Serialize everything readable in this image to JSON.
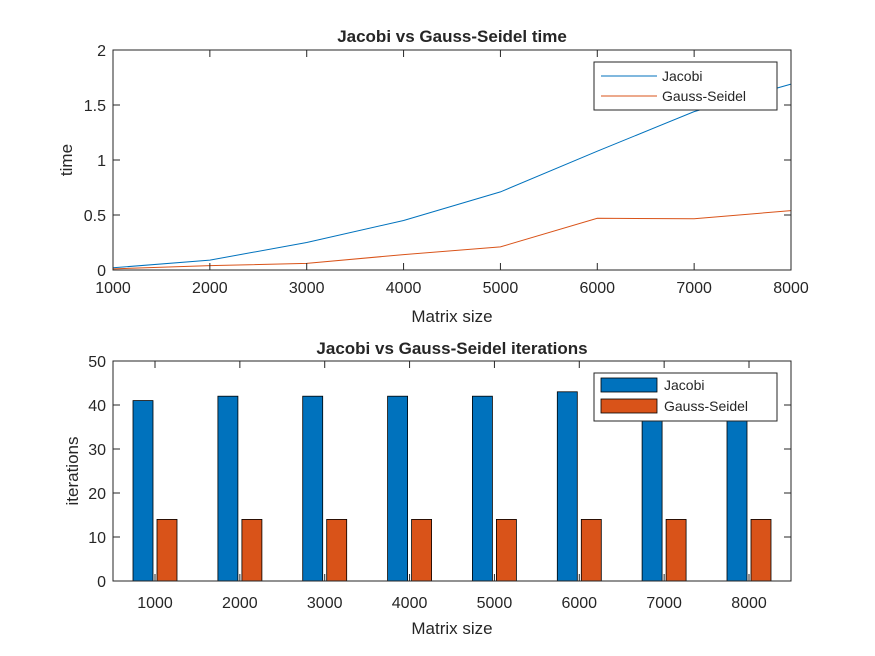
{
  "chart_data": [
    {
      "type": "line",
      "title": "Jacobi vs Gauss-Seidel time",
      "xlabel": "Matrix size",
      "ylabel": "time",
      "xlim": [
        1000,
        8000
      ],
      "ylim": [
        0,
        2
      ],
      "x": [
        1000,
        2000,
        3000,
        4000,
        5000,
        6000,
        7000,
        8000
      ],
      "xticks": [
        "1000",
        "2000",
        "3000",
        "4000",
        "5000",
        "6000",
        "7000",
        "8000"
      ],
      "yticks": [
        "0",
        "0.5",
        "1",
        "1.5",
        "2"
      ],
      "series": [
        {
          "name": "Jacobi",
          "color": "#0072BD",
          "values": [
            0.02,
            0.09,
            0.25,
            0.45,
            0.71,
            1.08,
            1.44,
            1.69
          ]
        },
        {
          "name": "Gauss-Seidel",
          "color": "#D95319",
          "values": [
            0.01,
            0.04,
            0.06,
            0.14,
            0.21,
            0.47,
            0.465,
            0.54
          ]
        }
      ],
      "legend": "top-right",
      "grid": false
    },
    {
      "type": "bar",
      "title": "Jacobi vs Gauss-Seidel iterations",
      "xlabel": "Matrix size",
      "ylabel": "iterations",
      "ylim": [
        0,
        50
      ],
      "categories": [
        "1000",
        "2000",
        "3000",
        "4000",
        "5000",
        "6000",
        "7000",
        "8000"
      ],
      "yticks": [
        "0",
        "10",
        "20",
        "30",
        "40",
        "50"
      ],
      "series": [
        {
          "name": "Jacobi",
          "color": "#0072BD",
          "values": [
            41,
            42,
            42,
            42,
            42,
            43,
            43,
            43
          ]
        },
        {
          "name": "Gauss-Seidel",
          "color": "#D95319",
          "values": [
            14,
            14,
            14,
            14,
            14,
            14,
            14,
            14
          ]
        }
      ],
      "legend": "top-right",
      "grid": false
    }
  ]
}
